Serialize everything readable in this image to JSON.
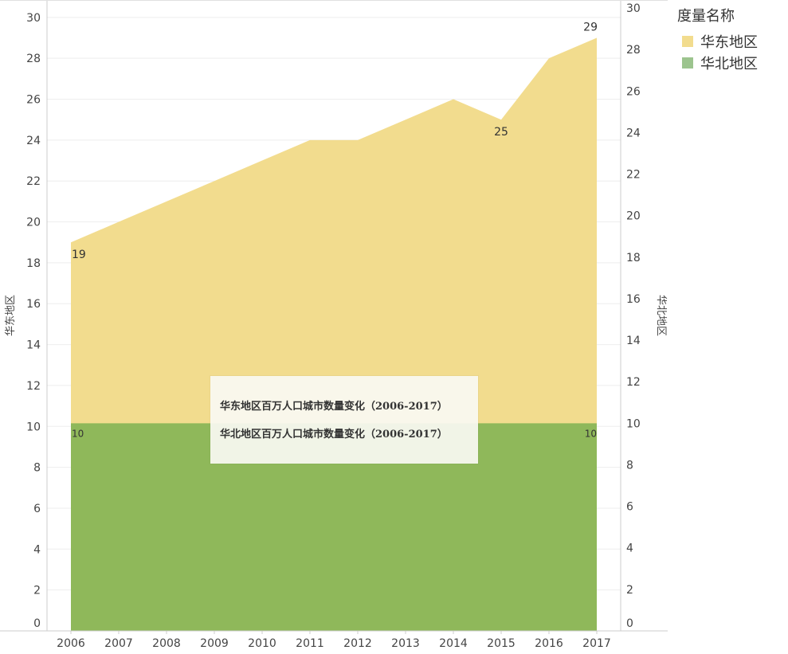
{
  "chart_data": {
    "type": "area",
    "x": [
      "2006",
      "2007",
      "2008",
      "2009",
      "2010",
      "2011",
      "2012",
      "2013",
      "2014",
      "2015",
      "2016",
      "2017"
    ],
    "series": [
      {
        "name": "华东地区",
        "axis": "left",
        "color": "#f2dc8e",
        "values": [
          19,
          20,
          21,
          22,
          23,
          24,
          24,
          25,
          26,
          25,
          28,
          29
        ]
      },
      {
        "name": "华北地区",
        "axis": "right",
        "color": "#8fb85a",
        "values": [
          10,
          10,
          10,
          10,
          10,
          10,
          10,
          10,
          10,
          10,
          10,
          10
        ]
      }
    ],
    "y_left": {
      "label": "华东地区",
      "range": [
        0,
        30.5
      ],
      "ticks": [
        0,
        2,
        4,
        6,
        8,
        10,
        12,
        14,
        16,
        18,
        20,
        22,
        24,
        26,
        28,
        30
      ]
    },
    "y_right": {
      "label": "华北地区",
      "range": [
        0,
        30
      ],
      "ticks": [
        0,
        2,
        4,
        6,
        8,
        10,
        12,
        14,
        16,
        18,
        20,
        22,
        24,
        26,
        28,
        30
      ]
    },
    "data_labels": [
      {
        "series": 0,
        "index": 0,
        "text": "19"
      },
      {
        "series": 0,
        "index": 9,
        "text": "25"
      },
      {
        "series": 0,
        "index": 11,
        "text": "29"
      },
      {
        "series": 1,
        "index": 0,
        "text": "10"
      },
      {
        "series": 1,
        "index": 11,
        "text": "10"
      }
    ],
    "grid": true,
    "legend": {
      "title": "度量名称",
      "placement": "top-right",
      "items": [
        {
          "label": "华东地区",
          "color": "#f2dc8e"
        },
        {
          "label": "华北地区",
          "color": "#9cc48e"
        }
      ]
    }
  },
  "tooltip": {
    "line1": "华东地区百万人口城市数量变化（2006-2017）",
    "line2": "华北地区百万人口城市数量变化（2006-2017）"
  }
}
